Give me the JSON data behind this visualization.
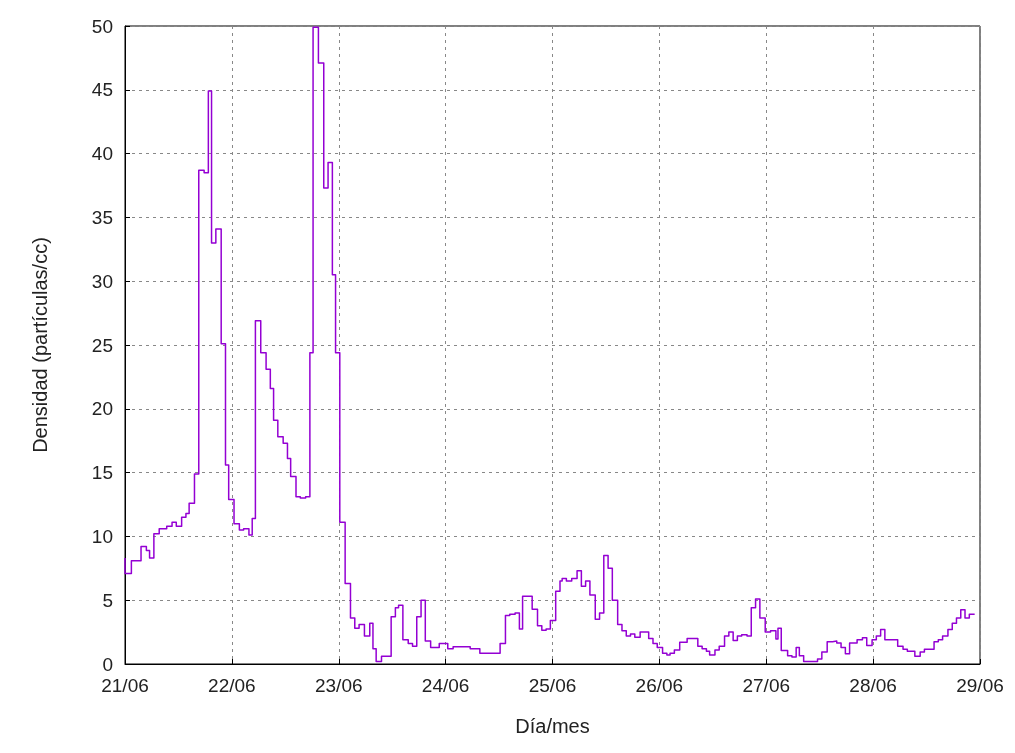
{
  "chart_data": {
    "type": "step",
    "xlabel": "Día/mes",
    "ylabel": "Densidad (partículas/cc)",
    "xlim": [
      "--06-21",
      "--06-29"
    ],
    "xticks": [
      {
        "value": "--06-21",
        "label": "21/06"
      },
      {
        "value": "--06-22",
        "label": "22/06"
      },
      {
        "value": "--06-23",
        "label": "23/06"
      },
      {
        "value": "--06-24",
        "label": "24/06"
      },
      {
        "value": "--06-25",
        "label": "25/06"
      },
      {
        "value": "--06-26",
        "label": "26/06"
      },
      {
        "value": "--06-27",
        "label": "27/06"
      },
      {
        "value": "--06-28",
        "label": "28/06"
      },
      {
        "value": "--06-29",
        "label": "29/06"
      }
    ],
    "ylim": [
      0,
      50
    ],
    "yticks": [
      0,
      5,
      10,
      15,
      20,
      25,
      30,
      35,
      40,
      45,
      50
    ],
    "grid": true,
    "line_style": "solid",
    "marker": "none",
    "series": [
      {
        "color": "#9400d3",
        "x": [
          "--06-21T00:00",
          "--06-21T01:26",
          "--06-21T03:36",
          "--06-21T04:48",
          "--06-21T05:31",
          "--06-21T06:29",
          "--06-21T07:41",
          "--06-21T09:22",
          "--06-21T10:34",
          "--06-21T11:31",
          "--06-21T12:43",
          "--06-21T13:41",
          "--06-21T14:24",
          "--06-21T15:36",
          "--06-21T16:34",
          "--06-21T17:46",
          "--06-21T18:43",
          "--06-21T19:26",
          "--06-21T20:24",
          "--06-21T21:36",
          "--06-21T22:34",
          "--06-21T23:17",
          "--06-22T00:29",
          "--06-22T01:41",
          "--06-22T02:38",
          "--06-22T03:50",
          "--06-22T04:34",
          "--06-22T05:17",
          "--06-22T06:29",
          "--06-22T07:41",
          "--06-22T08:38",
          "--06-22T09:22",
          "--06-22T10:19",
          "--06-22T11:31",
          "--06-22T12:29",
          "--06-22T13:12",
          "--06-22T14:24",
          "--06-22T15:22",
          "--06-22T16:34",
          "--06-22T17:31",
          "--06-22T18:14",
          "--06-22T19:26",
          "--06-22T20:38",
          "--06-22T21:36",
          "--06-22T22:34",
          "--06-22T23:17",
          "--06-23T00:14",
          "--06-23T01:26",
          "--06-23T02:38",
          "--06-23T03:36",
          "--06-23T04:34",
          "--06-23T05:46",
          "--06-23T06:58",
          "--06-23T07:41",
          "--06-23T08:24",
          "--06-23T09:36",
          "--06-23T11:46",
          "--06-23T12:43",
          "--06-23T13:26",
          "--06-23T14:24",
          "--06-23T15:36",
          "--06-23T16:34",
          "--06-23T17:31",
          "--06-23T18:29",
          "--06-23T19:26",
          "--06-23T20:38",
          "--06-23T22:34",
          "--06-24T00:29",
          "--06-24T01:41",
          "--06-24T05:31",
          "--06-24T07:41",
          "--06-24T12:14",
          "--06-24T13:26",
          "--06-24T14:24",
          "--06-24T15:36",
          "--06-24T16:34",
          "--06-24T17:17",
          "--06-24T19:26",
          "--06-24T20:38",
          "--06-24T21:36",
          "--06-24T22:34",
          "--06-24T23:31",
          "--06-25T00:43",
          "--06-25T01:41",
          "--06-25T02:10",
          "--06-25T03:07",
          "--06-25T04:19",
          "--06-25T05:31",
          "--06-25T06:29",
          "--06-25T07:26",
          "--06-25T08:24",
          "--06-25T09:36",
          "--06-25T10:34",
          "--06-25T11:31",
          "--06-25T12:29",
          "--06-25T13:26",
          "--06-25T14:38",
          "--06-25T15:36",
          "--06-25T16:34",
          "--06-25T17:31",
          "--06-25T18:29",
          "--06-25T19:41",
          "--06-25T21:36",
          "--06-25T22:34",
          "--06-25T23:31",
          "--06-26T00:43",
          "--06-26T01:41",
          "--06-26T02:24",
          "--06-26T03:22",
          "--06-26T04:34",
          "--06-26T06:14",
          "--06-26T08:38",
          "--06-26T09:36",
          "--06-26T10:34",
          "--06-26T11:17",
          "--06-26T12:29",
          "--06-26T13:26",
          "--06-26T14:38",
          "--06-26T15:36",
          "--06-26T16:34",
          "--06-26T17:31",
          "--06-26T18:29",
          "--06-26T19:41",
          "--06-26T20:38",
          "--06-26T21:36",
          "--06-26T22:34",
          "--06-26T23:46",
          "--06-27T00:58",
          "--06-27T02:10",
          "--06-27T02:38",
          "--06-27T03:22",
          "--06-27T04:48",
          "--06-27T05:46",
          "--06-27T06:43",
          "--06-27T07:26",
          "--06-27T08:24",
          "--06-27T11:31",
          "--06-27T12:29",
          "--06-27T13:41",
          "--06-27T14:53",
          "--06-27T15:50",
          "--06-27T16:48",
          "--06-27T17:46",
          "--06-27T18:43",
          "--06-27T20:24",
          "--06-27T21:36",
          "--06-27T22:34",
          "--06-27T23:46",
          "--06-28T00:43",
          "--06-28T01:41",
          "--06-28T02:38",
          "--06-28T05:31",
          "--06-28T06:43",
          "--06-28T07:41",
          "--06-28T09:22",
          "--06-28T10:34",
          "--06-28T11:31",
          "--06-28T13:41",
          "--06-28T14:38",
          "--06-28T15:36",
          "--06-28T16:48",
          "--06-28T17:46",
          "--06-28T18:43",
          "--06-28T19:41",
          "--06-28T20:38",
          "--06-28T21:36",
          "--06-28T22:34",
          "--06-28T22:48"
        ],
        "values": [
          8.3,
          7.1,
          8.1,
          9.2,
          8.9,
          8.3,
          10.2,
          10.6,
          10.8,
          11.1,
          10.8,
          11.5,
          11.8,
          12.6,
          14.9,
          38.7,
          38.5,
          44.9,
          33.0,
          34.1,
          25.1,
          15.6,
          12.9,
          11.0,
          10.5,
          10.6,
          10.1,
          11.4,
          26.9,
          24.4,
          23.1,
          21.6,
          19.1,
          17.8,
          17.3,
          16.1,
          14.7,
          13.1,
          13.0,
          13.1,
          24.4,
          49.9,
          47.1,
          37.3,
          39.3,
          30.5,
          24.4,
          11.1,
          6.3,
          3.6,
          2.8,
          3.1,
          2.2,
          3.2,
          1.2,
          0.2,
          0.6,
          3.7,
          4.4,
          4.6,
          1.9,
          1.6,
          1.4,
          3.7,
          5.0,
          1.8,
          1.3,
          1.6,
          1.2,
          1.35,
          1.2,
          0.85,
          1.6,
          3.8,
          3.9,
          4.0,
          2.75,
          5.3,
          4.3,
          3.0,
          2.65,
          2.75,
          3.4,
          5.7,
          6.5,
          6.7,
          6.5,
          6.7,
          7.3,
          6.1,
          6.5,
          5.4,
          3.5,
          4.0,
          8.5,
          7.5,
          5.0,
          3.1,
          2.6,
          2.2,
          2.35,
          2.1,
          2.5,
          2.0,
          1.6,
          1.3,
          0.85,
          0.7,
          0.85,
          1.1,
          1.7,
          2.0,
          1.4,
          1.2,
          1.0,
          0.7,
          1.1,
          1.4,
          2.2,
          2.5,
          1.85,
          2.2,
          2.3,
          2.2,
          4.4,
          5.1,
          3.6,
          2.5,
          2.6,
          1.95,
          2.8,
          1.05,
          0.65,
          0.55,
          1.3,
          0.65,
          0.2,
          0.4,
          0.95,
          1.75,
          1.8,
          1.65,
          1.3,
          0.8,
          1.65,
          1.9,
          2.05,
          1.45,
          1.9,
          2.2,
          2.7,
          1.9,
          1.4,
          1.15,
          1.0,
          0.6,
          0.95,
          1.15,
          1.75,
          1.9,
          2.2,
          2.7,
          3.2,
          3.6,
          4.25,
          3.6,
          3.9,
          3.9
        ]
      }
    ]
  }
}
